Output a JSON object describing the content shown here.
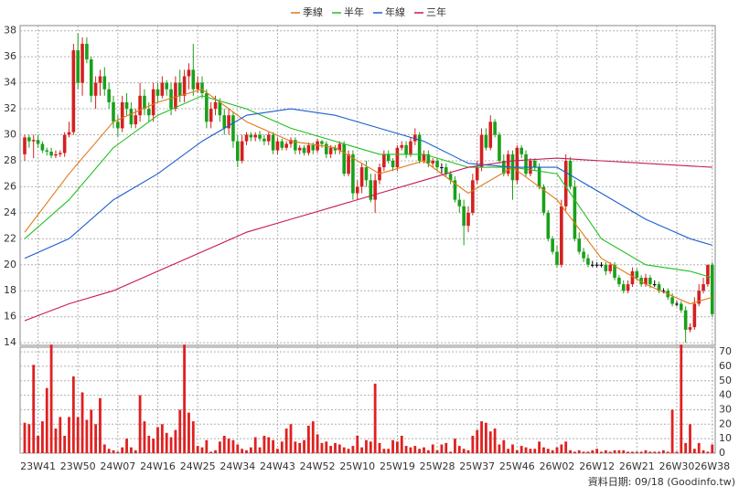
{
  "chart_data": {
    "type": "candlestick",
    "footer": "資料日期: 09/18 (Goodinfo.tw)",
    "up_color": "#d42020",
    "down_color": "#1aa01a",
    "flat_color": "#000000",
    "volume_color": "#e02020",
    "grid": true,
    "categories": [
      null,
      null,
      null,
      "23W41",
      null,
      null,
      null,
      null,
      null,
      null,
      null,
      null,
      "23W50",
      null,
      null,
      null,
      null,
      null,
      null,
      null,
      null,
      "24W07",
      null,
      null,
      null,
      null,
      null,
      null,
      null,
      null,
      "24W16",
      null,
      null,
      null,
      null,
      null,
      null,
      null,
      null,
      "24W25",
      null,
      null,
      null,
      null,
      null,
      null,
      null,
      null,
      "24W34",
      null,
      null,
      null,
      null,
      null,
      null,
      null,
      null,
      "24W43",
      null,
      null,
      null,
      null,
      null,
      null,
      null,
      null,
      "24W52",
      null,
      null,
      null,
      null,
      null,
      null,
      null,
      null,
      "25W10",
      null,
      null,
      null,
      null,
      null,
      null,
      null,
      null,
      "25W19",
      null,
      null,
      null,
      null,
      null,
      null,
      null,
      null,
      "25W28",
      null,
      null,
      null,
      null,
      null,
      null,
      null,
      null,
      "25W37",
      null,
      null,
      null,
      null,
      null,
      null,
      null,
      null,
      "25W46",
      null,
      null,
      null,
      null,
      null,
      null,
      null,
      null,
      "26W02",
      null,
      null,
      null,
      null,
      null,
      null,
      null,
      null,
      "26W12",
      null,
      null,
      null,
      null,
      null,
      null,
      null,
      null,
      "26W21",
      null,
      null,
      null,
      null,
      null,
      null,
      null,
      null,
      "26W30",
      null,
      null,
      null,
      null,
      null,
      null,
      null,
      "26W38"
    ],
    "open": [
      28.5,
      29.8,
      29.5,
      29.6,
      29.3,
      28.8,
      28.7,
      28.4,
      28.5,
      28.6,
      30,
      30.2,
      36.5,
      34,
      37,
      35.8,
      33,
      34,
      34.5,
      33.5,
      32.5,
      31,
      30.5,
      32.5,
      32,
      30.8,
      31.5,
      33,
      32,
      31.5,
      33.5,
      33,
      34,
      33.5,
      32,
      34,
      33,
      34.5,
      35,
      33.5,
      34,
      33.2,
      31,
      32,
      32.5,
      31.5,
      30.5,
      31.5,
      29.5,
      28,
      29.5,
      30,
      29.8,
      30,
      29.7,
      29.5,
      30,
      28.8,
      29.5,
      29,
      29.3,
      29.6,
      28.8,
      29,
      28.6,
      29.2,
      28.8,
      29.5,
      29.3,
      28.5,
      29,
      28.8,
      29.3,
      27,
      28.5,
      25.5,
      26,
      27.5,
      26.5,
      25,
      26.5,
      27.5,
      28.5,
      28,
      27.5,
      29,
      29.2,
      28.5,
      29.5,
      30,
      28,
      28.5,
      27.8,
      28,
      27.5,
      27.5,
      27,
      26.5,
      25,
      24.5,
      23,
      24,
      26.5,
      27.5,
      30,
      29,
      31,
      30,
      28,
      27,
      28.5,
      26.5,
      29,
      28.5,
      27,
      28,
      27.5,
      26,
      24,
      22,
      21,
      20,
      24.5,
      28,
      26,
      22,
      21,
      20.5,
      20,
      20,
      20,
      20,
      19.5,
      20,
      19,
      18.5,
      18,
      18.5,
      19.5,
      19,
      18.5,
      19,
      18.5,
      18.5,
      18,
      18,
      17.5,
      17,
      17,
      16.5,
      15,
      15.2,
      17,
      18,
      18.5,
      20
    ],
    "high": [
      30,
      30,
      30,
      30,
      29.5,
      29,
      29,
      28.8,
      28.8,
      30.2,
      31,
      37,
      37.8,
      37.5,
      37.5,
      36,
      34.5,
      35,
      35.2,
      34,
      33,
      31.5,
      33,
      33.2,
      32.5,
      32,
      34,
      33.5,
      32.5,
      34,
      34,
      34.5,
      34.2,
      34,
      34.5,
      35,
      35,
      35.5,
      37,
      34.5,
      34.5,
      33.5,
      32.5,
      33,
      32.8,
      32,
      32,
      31.8,
      30,
      30,
      30.2,
      30.2,
      30.2,
      30.3,
      30,
      30.2,
      30.2,
      29.8,
      29.7,
      29.5,
      29.8,
      29.8,
      29.2,
      29.2,
      29.4,
      29.4,
      29.7,
      29.6,
      29.5,
      29.2,
      29.2,
      29.5,
      29.5,
      28.8,
      28.8,
      26.5,
      27.8,
      28,
      27,
      27,
      27.8,
      28.8,
      28.8,
      28.2,
      29.2,
      29.5,
      29.5,
      29.8,
      30.5,
      30.2,
      28.8,
      28.8,
      28.2,
      28.2,
      27.8,
      27.8,
      27.2,
      26.8,
      25.5,
      25,
      24.5,
      27,
      28,
      30.5,
      30.5,
      31.5,
      31.2,
      30.2,
      28.5,
      28.8,
      28.8,
      29.2,
      29.2,
      28.8,
      28.2,
      28.2,
      27.8,
      26.2,
      24.2,
      22.2,
      21.5,
      25,
      28.5,
      28.3,
      26.5,
      22.5,
      21.3,
      20.8,
      20.3,
      20.2,
      20.2,
      20.2,
      20.2,
      20.2,
      19.2,
      18.8,
      18.8,
      19.8,
      19.7,
      19.2,
      19.3,
      19.2,
      18.8,
      18.7,
      18.2,
      18.2,
      17.8,
      17.2,
      17.2,
      16.8,
      15.5,
      17.5,
      18.5,
      19,
      20,
      20.2
    ],
    "low": [
      28,
      29,
      28.2,
      29,
      28.6,
      28.4,
      28.2,
      28.2,
      28.3,
      28.3,
      29.8,
      30,
      33.5,
      33,
      35.5,
      32.5,
      32,
      33,
      33,
      32,
      30.5,
      29.8,
      30.2,
      31.5,
      30.5,
      30.5,
      31,
      31.5,
      31,
      31,
      32.5,
      32.8,
      33,
      31.5,
      31.8,
      32.5,
      32.5,
      33.5,
      33,
      33.2,
      32.8,
      30.5,
      30.5,
      31.5,
      31,
      30,
      30,
      29,
      27.5,
      27.8,
      29.2,
      29.5,
      29.5,
      29.5,
      29.2,
      29.2,
      28.5,
      28.5,
      28.8,
      28.8,
      29,
      28.5,
      28.5,
      28.4,
      28.4,
      28.5,
      28.6,
      29,
      28.2,
      28.2,
      28.5,
      28.5,
      26.8,
      26.8,
      25,
      25,
      25.5,
      26,
      24.8,
      24,
      26.2,
      27.2,
      27.8,
      27.2,
      27.2,
      28.8,
      28.2,
      28.3,
      29.2,
      27.8,
      27.8,
      27.5,
      27.5,
      27.2,
      27,
      26.8,
      26.2,
      24.8,
      24,
      21.5,
      22.5,
      23.8,
      26.2,
      27.2,
      28.8,
      28.8,
      29.8,
      27.8,
      26.8,
      26.8,
      25,
      26.2,
      28.2,
      26.8,
      26.8,
      27.2,
      25.8,
      23.8,
      21.8,
      20.8,
      19.8,
      19.8,
      24.2,
      25.8,
      21.8,
      20.8,
      20.2,
      19.8,
      19.8,
      19.8,
      19.8,
      19.2,
      19.3,
      18.8,
      18.3,
      17.8,
      17.8,
      18.3,
      18.8,
      18.3,
      18.3,
      18.2,
      18.3,
      17.8,
      17.8,
      17.3,
      16.8,
      16.8,
      16.3,
      14,
      14.8,
      15,
      16.8,
      17.8,
      18.3,
      16
    ],
    "close": [
      29.8,
      29.5,
      29.6,
      29.3,
      28.8,
      28.7,
      28.4,
      28.5,
      28.6,
      30,
      30.2,
      36.5,
      34,
      37,
      35.8,
      33,
      34,
      34.5,
      33.5,
      32.5,
      31,
      30.5,
      32.5,
      32,
      30.8,
      31.5,
      33,
      32,
      31.5,
      33.5,
      33,
      34,
      33.5,
      32,
      34,
      33,
      34.5,
      35,
      33.5,
      34,
      33.2,
      31,
      32,
      32.5,
      31.5,
      30.5,
      31.5,
      29.5,
      28,
      29.5,
      30,
      29.8,
      30,
      29.7,
      29.5,
      30,
      28.8,
      29.5,
      29,
      29.3,
      29.6,
      28.8,
      29,
      28.6,
      29.2,
      28.8,
      29.5,
      29.3,
      28.5,
      29,
      28.8,
      29.3,
      27,
      28.5,
      25.5,
      26,
      27.5,
      26.5,
      25,
      26.5,
      27.5,
      28.5,
      28,
      27.5,
      29,
      29.2,
      28.5,
      29.5,
      30,
      28,
      28.5,
      27.8,
      28,
      27.5,
      27.5,
      27,
      26.5,
      25,
      24.5,
      23,
      24,
      26.5,
      27.5,
      30,
      29,
      31,
      30,
      28,
      27,
      28.5,
      26.5,
      29,
      28.5,
      27,
      28,
      27.5,
      26,
      24,
      22,
      21,
      20,
      24.5,
      28,
      26,
      22,
      21,
      20.5,
      20,
      20,
      20,
      20,
      19.5,
      20,
      19,
      18.5,
      18,
      18.5,
      19.5,
      19,
      18.5,
      19,
      18.5,
      18.5,
      18,
      18,
      17.5,
      17,
      17,
      16.5,
      15,
      15.2,
      17,
      18,
      18.5,
      20,
      16.2
    ],
    "volume": [
      21,
      20,
      61,
      12,
      22,
      45,
      75,
      17,
      25,
      12,
      25,
      53,
      25,
      42,
      23,
      30,
      20,
      38,
      6,
      3,
      2,
      1,
      4,
      10,
      4,
      2,
      40,
      22,
      12,
      10,
      18,
      20,
      14,
      11,
      16,
      30,
      75,
      28,
      22,
      5,
      4,
      9,
      1,
      2,
      8,
      12,
      10,
      9,
      6,
      3,
      2,
      4,
      11,
      4,
      12,
      11,
      9,
      3,
      8,
      17,
      20,
      8,
      7,
      9,
      19,
      22,
      13,
      7,
      8,
      5,
      7,
      6,
      4,
      3,
      5,
      12,
      4,
      9,
      8,
      48,
      7,
      3,
      3,
      9,
      8,
      12,
      5,
      4,
      5,
      3,
      4,
      2,
      6,
      2,
      6,
      7,
      1,
      10,
      5,
      3,
      2,
      12,
      16,
      22,
      21,
      15,
      17,
      6,
      9,
      3,
      6,
      2,
      5,
      4,
      3,
      3,
      8,
      4,
      3,
      2,
      4,
      6,
      8,
      2,
      1,
      2,
      1,
      1,
      2,
      3,
      1,
      2,
      1,
      2,
      2,
      2,
      1,
      1,
      1,
      1,
      2,
      1,
      1,
      1,
      2,
      1,
      30,
      1,
      75,
      7,
      20,
      3,
      7,
      2,
      1,
      6
    ],
    "series": [
      {
        "name": "季線",
        "color": "#e07818",
        "x": [
          0,
          10,
          20,
          30,
          40,
          50,
          60,
          70,
          80,
          90,
          100,
          110,
          120,
          130,
          140,
          150,
          155
        ],
        "values": [
          22.5,
          27,
          31,
          32.5,
          33.5,
          31,
          29.5,
          29,
          27,
          28,
          25.5,
          27.5,
          25,
          20.5,
          18.5,
          17,
          17.5
        ]
      },
      {
        "name": "半年",
        "color": "#22c022",
        "x": [
          0,
          10,
          20,
          30,
          40,
          50,
          60,
          70,
          80,
          90,
          100,
          110,
          120,
          130,
          140,
          150,
          155
        ],
        "values": [
          22,
          25,
          29,
          31.5,
          33,
          32,
          30.5,
          29.5,
          28.5,
          28.5,
          27.5,
          27.5,
          27,
          22,
          20,
          19.5,
          19
        ]
      },
      {
        "name": "年線",
        "color": "#1a5fd0",
        "x": [
          0,
          10,
          20,
          30,
          40,
          50,
          60,
          70,
          80,
          90,
          100,
          110,
          120,
          130,
          140,
          150,
          155
        ],
        "values": [
          20.5,
          22,
          25,
          27,
          29.5,
          31.5,
          32,
          31.5,
          30.5,
          29.5,
          27.8,
          27.5,
          27.5,
          25.5,
          23.5,
          22,
          21.5
        ]
      },
      {
        "name": "三年",
        "color": "#c8185a",
        "x": [
          0,
          10,
          20,
          30,
          40,
          50,
          60,
          70,
          80,
          90,
          100,
          110,
          120,
          130,
          140,
          150,
          155
        ],
        "values": [
          15.7,
          17,
          18,
          19.5,
          21,
          22.5,
          23.5,
          24.5,
          25.5,
          26.5,
          27.5,
          28,
          28.2,
          28,
          27.8,
          27.6,
          27.5
        ]
      }
    ],
    "ylim": [
      13.8,
      38.4
    ],
    "yticks": [
      14,
      16,
      18,
      20,
      22,
      24,
      26,
      28,
      30,
      32,
      34,
      36,
      38
    ],
    "volume_ylim": [
      0,
      73.2
    ],
    "volume_yticks": [
      0,
      10,
      20,
      30,
      40,
      50,
      60,
      70
    ]
  }
}
